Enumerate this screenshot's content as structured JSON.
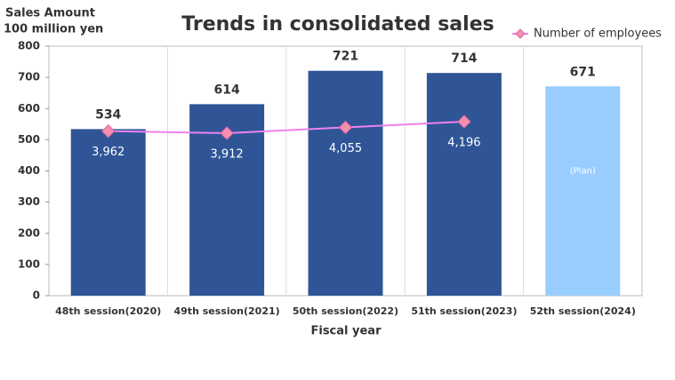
{
  "chart_data": {
    "type": "bar",
    "title": "Trends in consolidated sales",
    "ylabel": [
      "Sales Amount",
      "100 million yen"
    ],
    "xlabel": "Fiscal year",
    "categories": [
      "48th session(2020)",
      "49th session(2021)",
      "50th session(2022)",
      "51th session(2023)",
      "52th session(2024)"
    ],
    "series": [
      {
        "name": "Sales Amount",
        "type": "bar",
        "color": "#2f5597",
        "colors": [
          "#2f5597",
          "#2f5597",
          "#2f5597",
          "#2f5597",
          "#99ccff"
        ],
        "values": [
          534,
          614,
          721,
          714,
          671
        ]
      },
      {
        "name": "Number of employees",
        "type": "line",
        "axis": "y2",
        "color": "#ee82ee",
        "marker_color": "#f48fb1",
        "values": [
          3962,
          3912,
          4055,
          4196,
          null
        ],
        "value_labels": [
          "3,962",
          "3,912",
          "4,055",
          "4,196",
          null
        ]
      }
    ],
    "annotations": [
      {
        "category": 4,
        "text": "(Plan)"
      }
    ],
    "ylim": [
      0,
      800
    ],
    "yticks": [
      0,
      100,
      200,
      300,
      400,
      500,
      600,
      700,
      800
    ],
    "y2lim": [
      -100,
      6060
    ],
    "grid": "x",
    "legend": "top-right"
  }
}
